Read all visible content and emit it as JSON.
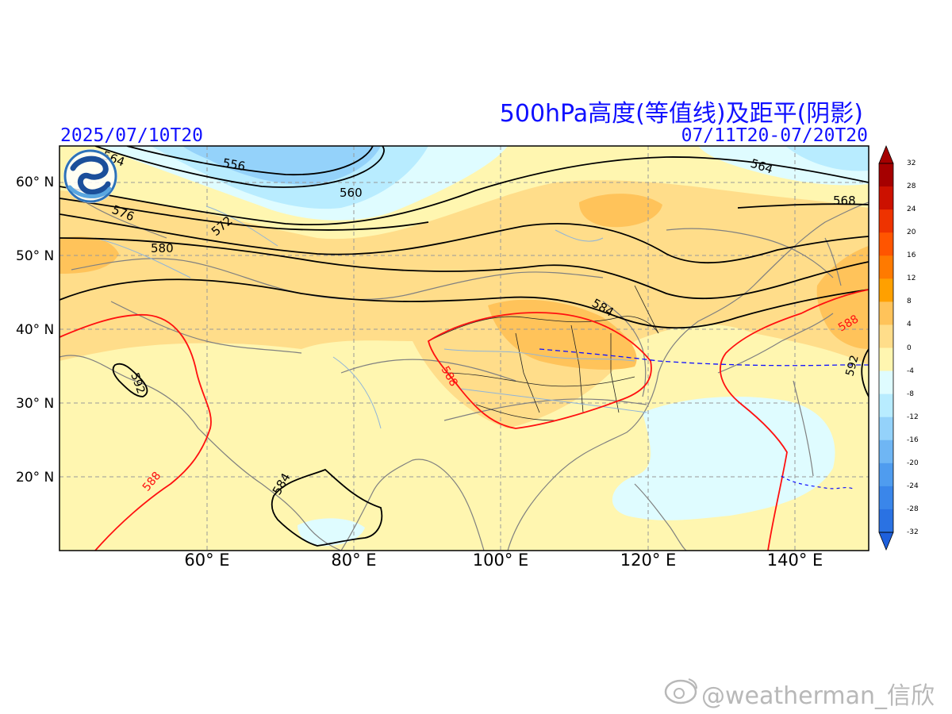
{
  "header": {
    "title": "500hPa高度(等值线)及距平(阴影)",
    "init_time": "2025/07/10T20",
    "valid_period": "07/11T20-07/20T20"
  },
  "axes": {
    "lat_labels": [
      "60° N",
      "50° N",
      "40° N",
      "30° N",
      "20° N"
    ],
    "lon_labels": [
      "60° E",
      "80° E",
      "100° E",
      "120° E",
      "140° E"
    ]
  },
  "contour_labels": {
    "c564a": "564",
    "c556": "556",
    "c560": "560",
    "c576": "576",
    "c572": "572",
    "c580": "580",
    "c564b": "564",
    "c568": "568",
    "c584a": "584",
    "c588a": "588",
    "c592a": "592",
    "c588b": "588",
    "c588c": "588",
    "c592b": "592",
    "c584b": "584"
  },
  "colorbar": {
    "labels": [
      "32",
      "28",
      "24",
      "20",
      "16",
      "12",
      "8",
      "4",
      "0",
      "-4",
      "-8",
      "-12",
      "-16",
      "-20",
      "-24",
      "-28",
      "-32"
    ],
    "colors": {
      "c32": "#a50000",
      "c28": "#cc1100",
      "c24": "#ee3300",
      "c20": "#ff5500",
      "c16": "#ff7a00",
      "c12": "#ffa000",
      "c8": "#ffc35a",
      "c4": "#ffdd8a",
      "c0": "#fff6b0",
      "cm4": "#dffcff",
      "cm8": "#b8ecff",
      "cm12": "#94d2fa",
      "cm16": "#6fb6f4",
      "cm20": "#4f9cef",
      "cm24": "#3a86ea",
      "cm28": "#2a72e3",
      "cm32": "#1e60dc"
    }
  },
  "watermark": "@weatherman_信欣",
  "logo_icon": "weather-agency-logo-icon",
  "weibo_icon": "weibo-eye-icon"
}
